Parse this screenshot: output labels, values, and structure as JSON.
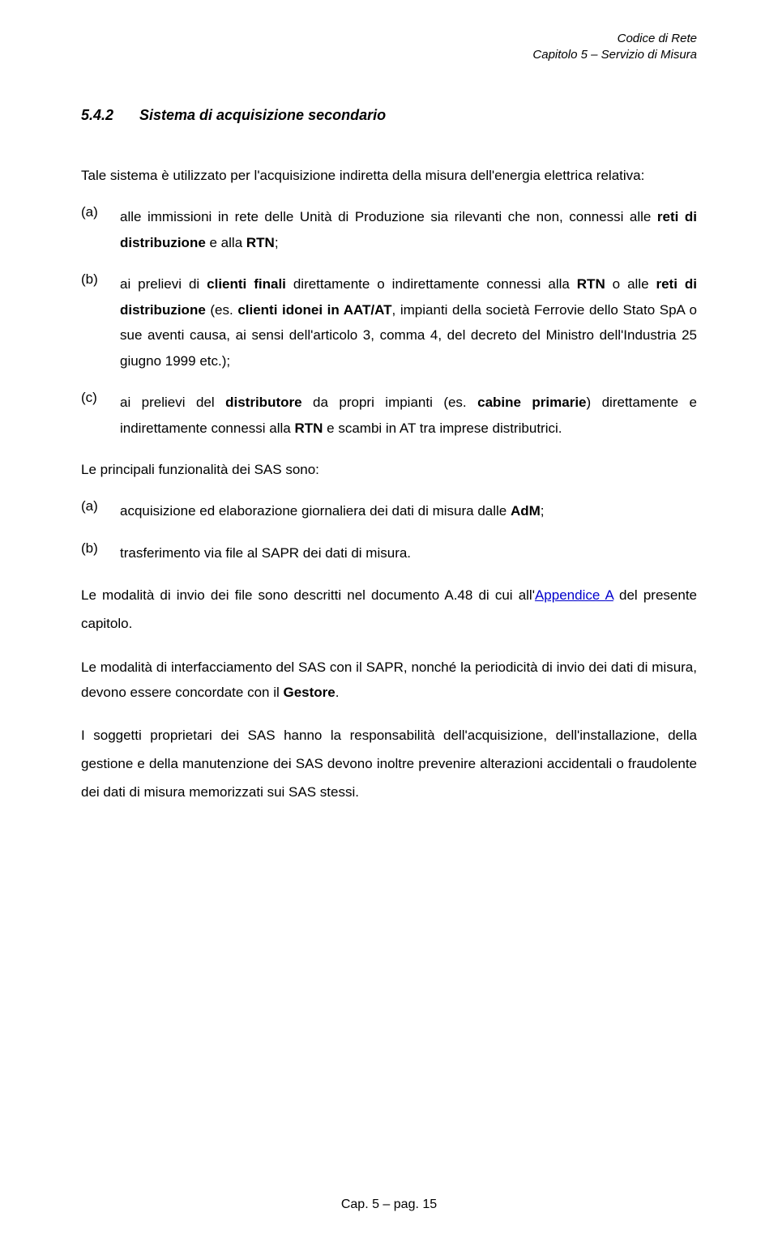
{
  "header": {
    "line1": "Codice di Rete",
    "line2": "Capitolo 5 – Servizio di Misura"
  },
  "section": {
    "number": "5.4.2",
    "title": "Sistema di acquisizione secondario"
  },
  "intro": "Tale sistema è utilizzato per l'acquisizione indiretta della misura dell'energia elettrica relativa:",
  "list1": {
    "a": {
      "marker": "(a)",
      "pre": "alle immissioni in rete delle Unità di Produzione sia rilevanti che non, connessi alle ",
      "bold1": "reti di distribuzione",
      "mid1": " e alla ",
      "bold2": "RTN",
      "post": ";"
    },
    "b": {
      "marker": "(b)",
      "t1": "ai prelievi di ",
      "b1": "clienti finali",
      "t2": " direttamente o indirettamente connessi alla ",
      "b2": "RTN",
      "t3": " o alle ",
      "b3": "reti di distribuzione",
      "t4": " (es. ",
      "b4": "clienti idonei in AAT/AT",
      "t5": ", impianti della società Ferrovie dello Stato SpA o sue aventi causa, ai sensi dell'articolo 3, comma 4, del decreto del Ministro dell'Industria 25 giugno 1999 etc.);"
    },
    "c": {
      "marker": "(c)",
      "t1": "ai prelievi del ",
      "b1": "distributore",
      "t2": " da propri impianti (es. ",
      "b2": "cabine primarie",
      "t3": ") direttamente e indirettamente connessi alla ",
      "b3": "RTN",
      "t4": " e scambi in AT tra imprese distributrici."
    }
  },
  "para1": "Le principali funzionalità dei SAS sono:",
  "list2": {
    "a": {
      "marker": "(a)",
      "t1": "acquisizione ed elaborazione giornaliera dei dati di misura dalle ",
      "b1": "AdM",
      "t2": ";"
    },
    "b": {
      "marker": "(b)",
      "text": "trasferimento via file al SAPR dei dati di misura."
    }
  },
  "para2": {
    "t1": "Le modalità di invio dei file sono descritti nel documento A.48 di cui all'",
    "link": "Appendice A",
    "t2": " del presente capitolo."
  },
  "para3": {
    "t1": "Le modalità di interfacciamento del SAS con il SAPR, nonché la periodicità di invio dei dati di misura, devono essere concordate con il ",
    "b1": "Gestore",
    "t2": "."
  },
  "para4": "I soggetti proprietari dei SAS hanno la responsabilità dell'acquisizione, dell'installazione, della gestione e della manutenzione dei SAS devono inoltre prevenire alterazioni accidentali o fraudolente dei dati di misura memorizzati sui SAS stessi.",
  "footer": "Cap. 5 – pag. 15"
}
